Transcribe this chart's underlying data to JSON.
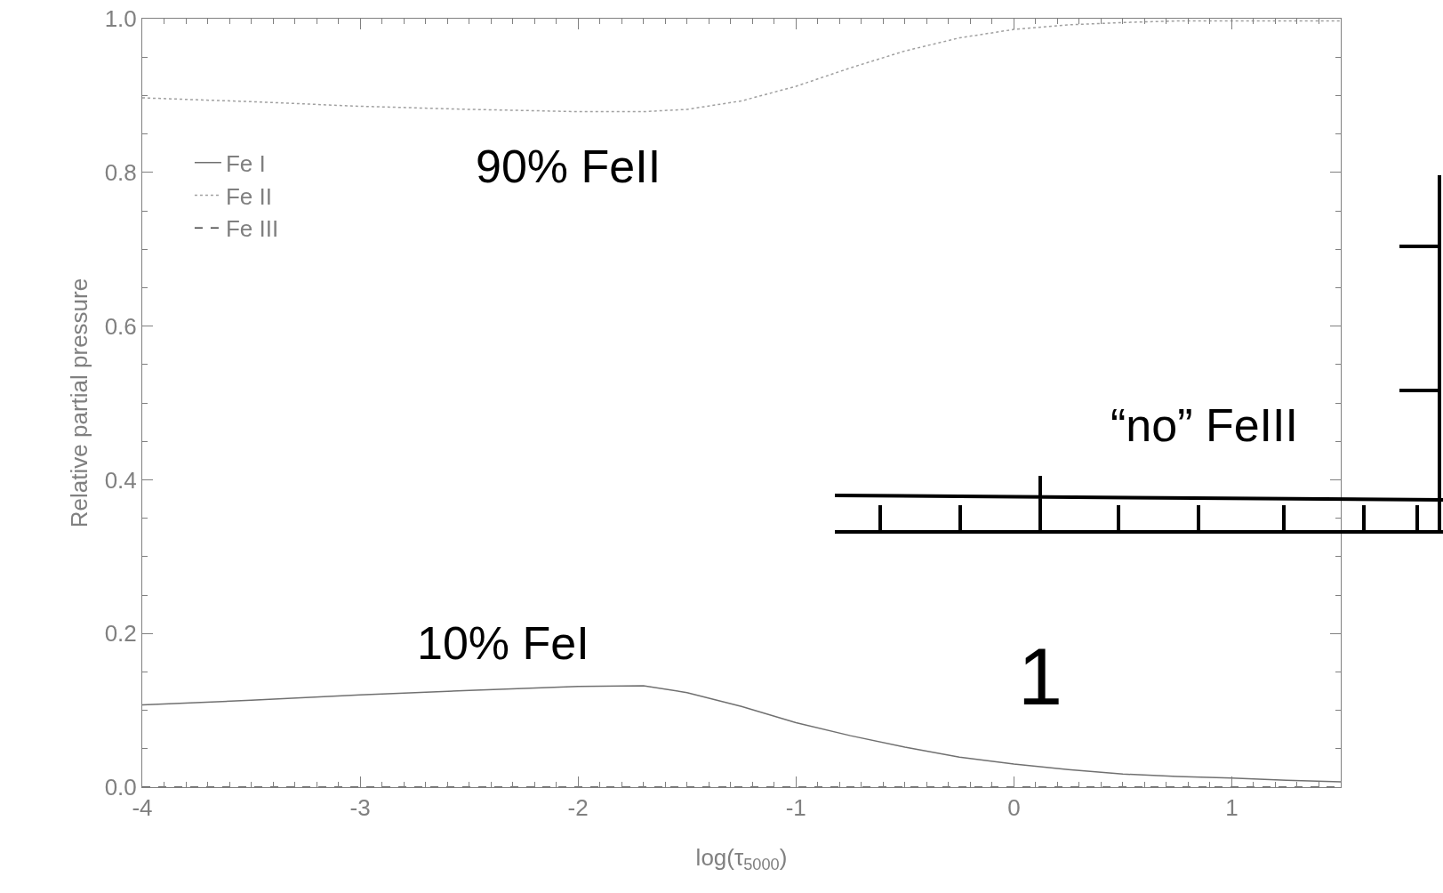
{
  "chart_data": {
    "type": "line",
    "xlabel": "log(τ$_{5000}$)",
    "ylabel": "Relative partial pressure",
    "x": [
      -4,
      -3.5,
      -3,
      -2.5,
      -2,
      -1.7,
      -1.5,
      -1.25,
      -1,
      -0.75,
      -0.5,
      -0.25,
      0,
      0.25,
      0.5,
      0.75,
      1,
      1.25,
      1.5
    ],
    "series": [
      {
        "name": "Fe I",
        "color": "#707070",
        "line_style": "solid",
        "values": [
          0.107,
          0.113,
          0.12,
          0.126,
          0.131,
          0.132,
          0.123,
          0.105,
          0.084,
          0.067,
          0.052,
          0.039,
          0.03,
          0.023,
          0.017,
          0.014,
          0.012,
          0.009,
          0.007
        ]
      },
      {
        "name": "Fe II",
        "color": "#a0a0a0",
        "line_style": "dotted",
        "values": [
          0.897,
          0.892,
          0.886,
          0.882,
          0.879,
          0.879,
          0.882,
          0.893,
          0.912,
          0.936,
          0.958,
          0.975,
          0.986,
          0.992,
          0.995,
          0.997,
          0.997,
          0.997,
          0.997
        ]
      },
      {
        "name": "Fe III",
        "color": "#404040",
        "line_style": "dashed",
        "values": [
          0,
          0,
          0,
          0,
          0,
          0,
          0,
          0,
          0,
          0,
          0,
          0,
          0,
          0,
          0,
          0,
          0,
          0,
          0
        ]
      }
    ],
    "xlim": [
      -4,
      1.5
    ],
    "xticks": [
      -4,
      -3,
      -2,
      -1,
      0,
      1
    ],
    "ylim": [
      0,
      1.0
    ],
    "yticks": [
      {
        "value": 0,
        "label": "0.0"
      },
      0.2,
      0.4,
      0.6,
      0.8,
      {
        "value": 1,
        "label": "1.0"
      }
    ],
    "grid": false,
    "legend": "top left",
    "marker": "none",
    "annotations": [
      "90% FeII",
      "10% FeI",
      "“no” FeIII",
      "1"
    ]
  }
}
